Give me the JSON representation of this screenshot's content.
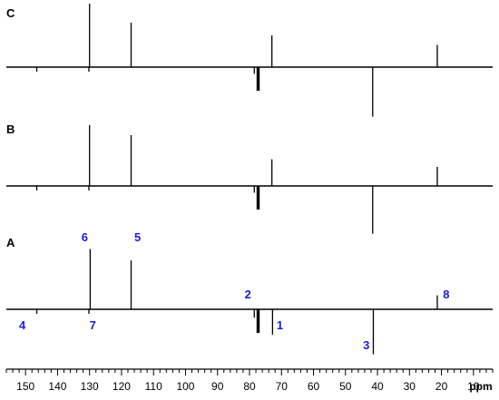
{
  "chart_data": {
    "type": "nmr-spectrum",
    "x_axis": {
      "unit": "ppm",
      "range": [
        156,
        4
      ],
      "reversed": true,
      "ticks": [
        150,
        140,
        130,
        120,
        110,
        100,
        90,
        80,
        70,
        60,
        50,
        40,
        30,
        20,
        10
      ],
      "tick_labels": [
        "150",
        "140",
        "130",
        "120",
        "110",
        "100",
        "90",
        "80",
        "70",
        "60",
        "50",
        "40",
        "30",
        "20",
        "10"
      ],
      "minor_step": 2
    },
    "spectra": [
      {
        "name": "C",
        "peaks": [
          {
            "ppm": 146.5,
            "intensity": -0.08
          },
          {
            "ppm": 130.0,
            "intensity": 1.0
          },
          {
            "ppm": 130.2,
            "intensity": -0.08
          },
          {
            "ppm": 117.0,
            "intensity": 0.7
          },
          {
            "ppm": 78.5,
            "intensity": -0.12
          },
          {
            "ppm": 77.6,
            "intensity": -0.42
          },
          {
            "ppm": 77.3,
            "intensity": -0.42
          },
          {
            "ppm": 77.0,
            "intensity": -0.42
          },
          {
            "ppm": 73.0,
            "intensity": 0.5
          },
          {
            "ppm": 41.5,
            "intensity": -0.88
          },
          {
            "ppm": 21.3,
            "intensity": 0.35
          }
        ]
      },
      {
        "name": "B",
        "peaks": [
          {
            "ppm": 146.5,
            "intensity": -0.08
          },
          {
            "ppm": 130.0,
            "intensity": 0.96
          },
          {
            "ppm": 130.2,
            "intensity": -0.08
          },
          {
            "ppm": 117.0,
            "intensity": 0.8
          },
          {
            "ppm": 78.5,
            "intensity": -0.12
          },
          {
            "ppm": 77.6,
            "intensity": -0.42
          },
          {
            "ppm": 77.3,
            "intensity": -0.42
          },
          {
            "ppm": 77.0,
            "intensity": -0.42
          },
          {
            "ppm": 73.0,
            "intensity": 0.42
          },
          {
            "ppm": 41.5,
            "intensity": -0.85
          },
          {
            "ppm": 21.3,
            "intensity": 0.3
          }
        ]
      },
      {
        "name": "A",
        "peaks": [
          {
            "ppm": 146.5,
            "intensity": -0.08
          },
          {
            "ppm": 129.8,
            "intensity": 0.95
          },
          {
            "ppm": 130.2,
            "intensity": -0.08
          },
          {
            "ppm": 117.0,
            "intensity": 0.77
          },
          {
            "ppm": 78.5,
            "intensity": -0.15
          },
          {
            "ppm": 77.6,
            "intensity": -0.42
          },
          {
            "ppm": 77.3,
            "intensity": -0.42
          },
          {
            "ppm": 77.0,
            "intensity": -0.42
          },
          {
            "ppm": 72.8,
            "intensity": -0.45
          },
          {
            "ppm": 41.3,
            "intensity": -0.8
          },
          {
            "ppm": 21.3,
            "intensity": 0.22
          }
        ]
      }
    ],
    "peak_labels": [
      {
        "spectrum": "A",
        "text": "1",
        "ppm": 70.5,
        "side": "below"
      },
      {
        "spectrum": "A",
        "text": "2",
        "ppm": 80.5,
        "side": "above"
      },
      {
        "spectrum": "A",
        "text": "3",
        "ppm": 43.5,
        "side": "below-far"
      },
      {
        "spectrum": "A",
        "text": "4",
        "ppm": 151.0,
        "side": "below"
      },
      {
        "spectrum": "A",
        "text": "5",
        "ppm": 115.0,
        "side": "above-far"
      },
      {
        "spectrum": "A",
        "text": "6",
        "ppm": 131.5,
        "side": "above-far"
      },
      {
        "spectrum": "A",
        "text": "7",
        "ppm": 129.0,
        "side": "below"
      },
      {
        "spectrum": "A",
        "text": "8",
        "ppm": 18.5,
        "side": "above"
      }
    ],
    "colors": {
      "spectrum": "#000000",
      "peak_label": "#1a1adc"
    }
  }
}
